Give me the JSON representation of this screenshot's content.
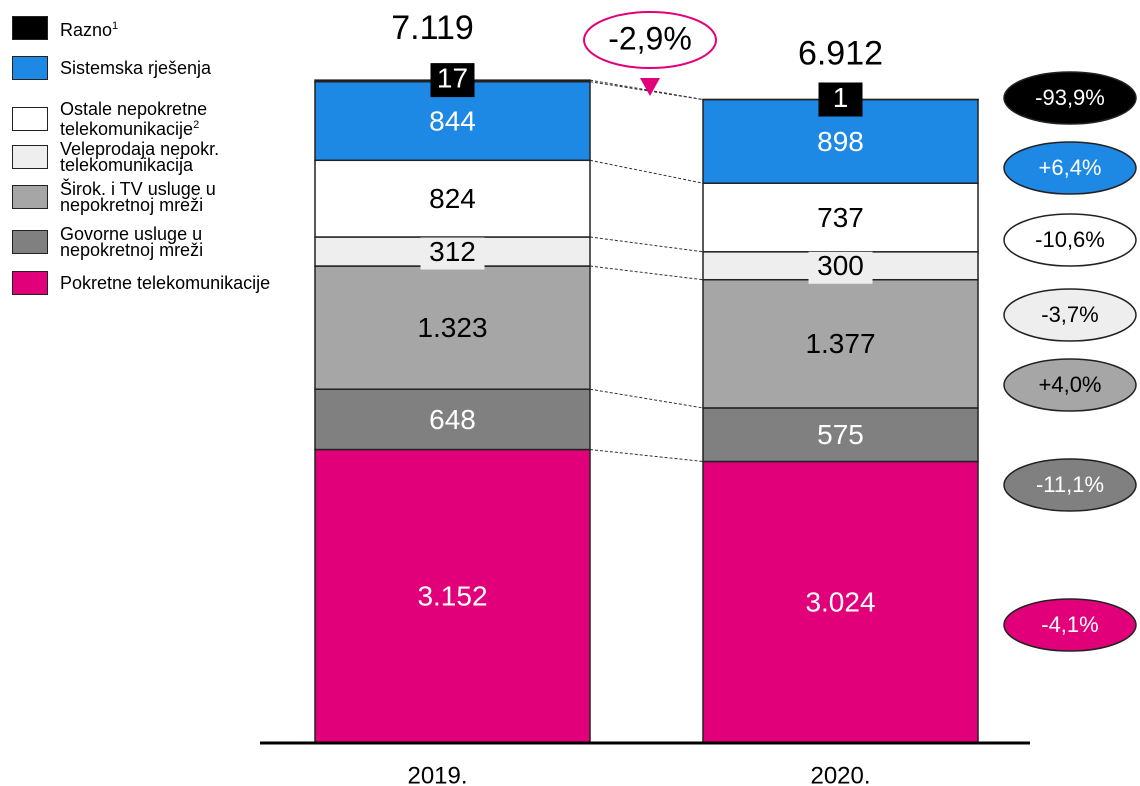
{
  "chart_data": {
    "type": "bar",
    "stacked": true,
    "categories": [
      "2019.",
      "2020."
    ],
    "totals": {
      "values": [
        7119,
        6912
      ],
      "value_labels": [
        "7.119",
        "6.912"
      ]
    },
    "total_change": {
      "value": -2.9,
      "label": "-2,9%"
    },
    "series": [
      {
        "name": "Pokretne telekomunikacije",
        "color": "#e2007a",
        "text_color": "#ffffff",
        "values": [
          3152,
          3024
        ],
        "value_labels": [
          "3.152",
          "3.024"
        ],
        "change": {
          "value": -4.1,
          "label": "-4,1%"
        }
      },
      {
        "name": "Govorne usluge u nepokretnoj mreži",
        "color": "#808080",
        "text_color": "#ffffff",
        "values": [
          648,
          575
        ],
        "change": {
          "value": -11.1,
          "label": "-11,1%"
        }
      },
      {
        "name": "Širok. i TV usluge u nepokretnoj mreži",
        "color": "#a6a6a6",
        "text_color": "#000000",
        "values": [
          1323,
          1377
        ],
        "value_labels": [
          "1.323",
          "1.377"
        ],
        "change": {
          "value": 4.0,
          "label": "+4,0%"
        }
      },
      {
        "name": "Veleprodaja nepokr. telekomunikacija",
        "color": "#eeeeee",
        "text_color": "#000000",
        "values": [
          312,
          300
        ],
        "change": {
          "value": -3.7,
          "label": "-3,7%"
        }
      },
      {
        "name": "Ostale nepokretne telekomunikacije",
        "note": "2",
        "color": "#ffffff",
        "text_color": "#000000",
        "values": [
          824,
          737
        ],
        "change": {
          "value": -10.6,
          "label": "-10,6%"
        }
      },
      {
        "name": "Sistemska rješenja",
        "color": "#1e88e5",
        "text_color": "#ffffff",
        "values": [
          844,
          898
        ],
        "change": {
          "value": 6.4,
          "label": "+6,4%"
        }
      },
      {
        "name": "Razno",
        "note": "1",
        "color": "#000000",
        "text_color": "#ffffff",
        "values": [
          17,
          1
        ],
        "change": {
          "value": -93.9,
          "label": "-93,9%"
        }
      }
    ]
  }
}
